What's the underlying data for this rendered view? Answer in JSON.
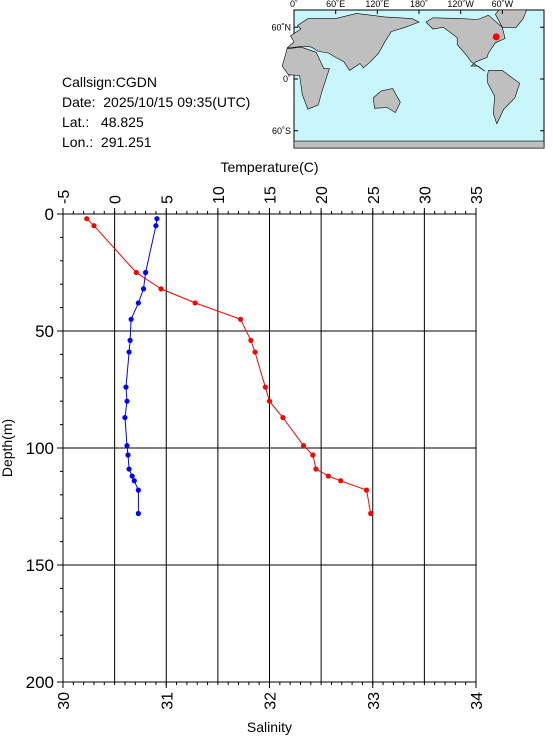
{
  "station": {
    "callsign_label": "Callsign:",
    "callsign": "CGDN",
    "date_label": "Date:",
    "date": "2025/10/15 09:35(UTC)",
    "lat_label": "Lat.:",
    "lat": "48.825",
    "lon_label": "Lon.:",
    "lon": "291.251"
  },
  "map": {
    "top_ticks": [
      "0˚",
      "60˚E",
      "120˚E",
      "180˚",
      "120˚W",
      "60˚W"
    ],
    "left_ticks": [
      "60˚N",
      "0˚",
      "60˚S"
    ],
    "ocean_color": "#c8f6fa",
    "land_color": "#bfbfbf",
    "marker_color": "#ff0000",
    "marker_lon": 291.251,
    "marker_lat": 48.825
  },
  "chart_data": {
    "type": "line",
    "title": "",
    "ylabel": "Depth(m)",
    "ylim": [
      0,
      200
    ],
    "y_inverted": true,
    "yticks": [
      0,
      50,
      100,
      150,
      200
    ],
    "temperature_axis": {
      "label": "Temperature(C)",
      "position": "top",
      "range": [
        -5,
        35
      ],
      "ticks": [
        -5,
        0,
        5,
        10,
        15,
        20,
        25,
        30,
        35
      ]
    },
    "salinity_axis": {
      "label": "Salinity",
      "position": "bottom",
      "range": [
        30,
        34
      ],
      "ticks": [
        30,
        31,
        32,
        33,
        34
      ]
    },
    "grid": true,
    "series": [
      {
        "name": "",
        "axis": "temperature",
        "color": "#ff0000",
        "depth": [
          2,
          5,
          25,
          32,
          38,
          45,
          54,
          59,
          74,
          80,
          87,
          99,
          103,
          109,
          112,
          114,
          118,
          128
        ],
        "values": [
          -2.7,
          -2.0,
          2.1,
          4.5,
          7.8,
          12.2,
          13.2,
          13.6,
          14.6,
          15.0,
          16.3,
          18.3,
          19.2,
          19.5,
          20.7,
          21.9,
          24.4,
          24.8
        ]
      },
      {
        "name": "",
        "axis": "salinity",
        "color": "#0000ff",
        "depth": [
          2,
          5,
          25,
          32,
          38,
          45,
          54,
          59,
          74,
          80,
          87,
          99,
          103,
          109,
          112,
          114,
          118,
          128
        ],
        "values": [
          30.91,
          30.9,
          30.8,
          30.78,
          30.73,
          30.66,
          30.65,
          30.64,
          30.61,
          30.62,
          30.6,
          30.62,
          30.63,
          30.64,
          30.67,
          30.69,
          30.73,
          30.73
        ]
      }
    ]
  }
}
